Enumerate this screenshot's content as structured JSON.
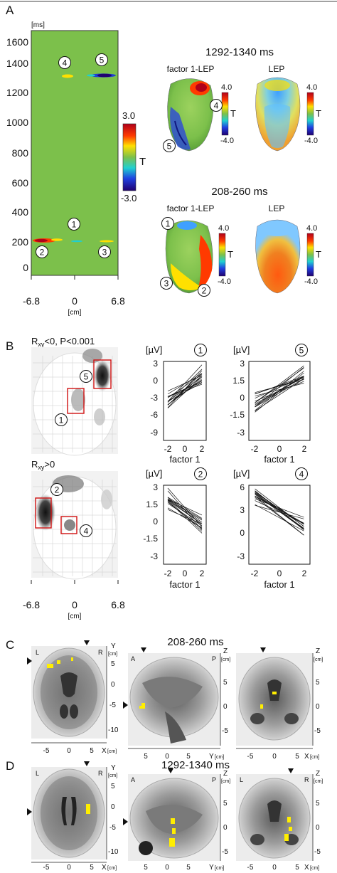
{
  "panel_a": {
    "letter": "A",
    "time_unit": "[ms]",
    "y_ticks": [
      "1600",
      "1400",
      "1200",
      "1000",
      "800",
      "600",
      "400",
      "200",
      "0"
    ],
    "x_ticks": [
      "-6.8",
      "0",
      "6.8"
    ],
    "x_unit": "[cm]",
    "colorbar": {
      "max": "3.0",
      "min": "-3.0",
      "label": "T"
    },
    "markers": [
      "4",
      "5",
      "1",
      "2",
      "3"
    ],
    "late": {
      "title": "1292-1340 ms",
      "left_label": "factor 1-LEP",
      "right_label": "LEP",
      "cb_max": "4.0",
      "cb_min": "-4.0",
      "cb_label": "T",
      "markers": [
        "4",
        "5"
      ]
    },
    "early": {
      "title": "208-260 ms",
      "left_label": "factor 1-LEP",
      "right_label": "LEP",
      "cb_max": "4.0",
      "cb_min": "-4.0",
      "cb_label": "T",
      "markers": [
        "1",
        "2",
        "3"
      ]
    }
  },
  "panel_b": {
    "letter": "B",
    "neg_label_main": "R",
    "neg_label_sub": "xy",
    "neg_label_rest": "<0, P<0.001",
    "pos_label_main": "R",
    "pos_label_sub": "xy",
    "pos_label_rest": ">0",
    "map_x_ticks": [
      "-6.8",
      "0",
      "6.8"
    ],
    "map_x_unit": "[cm]",
    "neg_markers": [
      "5",
      "1"
    ],
    "pos_markers": [
      "2",
      "4"
    ],
    "plots": [
      {
        "id": "1",
        "unit": "[µV]",
        "y_ticks": [
          "3",
          "0",
          "-3",
          "-6",
          "-9"
        ],
        "x_ticks": [
          "-2",
          "0",
          "2"
        ],
        "xlabel": "factor 1"
      },
      {
        "id": "5",
        "unit": "[µV]",
        "y_ticks": [
          "3",
          "1.5",
          "0",
          "-1.5",
          "-3"
        ],
        "x_ticks": [
          "-2",
          "0",
          "2"
        ],
        "xlabel": "factor 1"
      },
      {
        "id": "2",
        "unit": "[µV]",
        "y_ticks": [
          "3",
          "1.5",
          "0",
          "-1.5",
          "-3"
        ],
        "x_ticks": [
          "-2",
          "0",
          "2"
        ],
        "xlabel": "factor 1"
      },
      {
        "id": "4",
        "unit": "[µV]",
        "y_ticks": [
          "6",
          "3",
          "0",
          "-3"
        ],
        "x_ticks": [
          "-2",
          "0",
          "2"
        ],
        "xlabel": "factor 1"
      }
    ]
  },
  "panel_c": {
    "letter": "C",
    "title": "208-260 ms",
    "axial": {
      "l": "L",
      "r": "R",
      "y_axis": "Y",
      "unit": "[cm]",
      "y_ticks": [
        "5",
        "0",
        "-5",
        "-10"
      ],
      "x_ticks": [
        "-5",
        "0",
        "5"
      ],
      "x_axis": "X",
      "x_unit": "[cm]"
    },
    "sagittal": {
      "a": "A",
      "p": "P",
      "z_axis": "Z",
      "unit": "[cm]",
      "z_ticks": [
        "5",
        "0",
        "-5"
      ],
      "x_ticks": [
        "5",
        "0",
        "5"
      ],
      "y_axis": "Y",
      "y_unit": "[cm]"
    },
    "coronal": {
      "z_axis": "Z",
      "unit": "[cm]",
      "z_ticks": [
        "5",
        "0",
        "-5"
      ],
      "x_ticks": [
        "-5",
        "0",
        "5"
      ],
      "x_axis": "X",
      "x_unit": "[cm]"
    }
  },
  "panel_d": {
    "letter": "D",
    "title": "1292-1340 ms",
    "axial": {
      "l": "L",
      "r": "R",
      "y_axis": "Y",
      "unit": "[cm]",
      "y_ticks": [
        "5",
        "0",
        "-5",
        "-10"
      ],
      "x_ticks": [
        "-5",
        "0",
        "5"
      ],
      "x_axis": "X",
      "x_unit": "[cm]"
    },
    "sagittal": {
      "a": "A",
      "p": "P",
      "z_axis": "Z",
      "unit": "[cm]",
      "z_ticks": [
        "5",
        "0",
        "-5"
      ],
      "x_ticks": [
        "5",
        "0",
        "5"
      ],
      "y_axis": "Y",
      "y_unit": "[cm]"
    },
    "coronal": {
      "l": "L",
      "r": "R",
      "z_axis": "Z",
      "unit": "[cm]",
      "z_ticks": [
        "5",
        "0",
        "-5"
      ],
      "x_ticks": [
        "-5",
        "0",
        "5"
      ],
      "x_axis": "X",
      "x_unit": "[cm]"
    }
  },
  "colors": {
    "map_bg": "#7cc04b",
    "highlight": "#ffee00",
    "box": "#d01010"
  }
}
